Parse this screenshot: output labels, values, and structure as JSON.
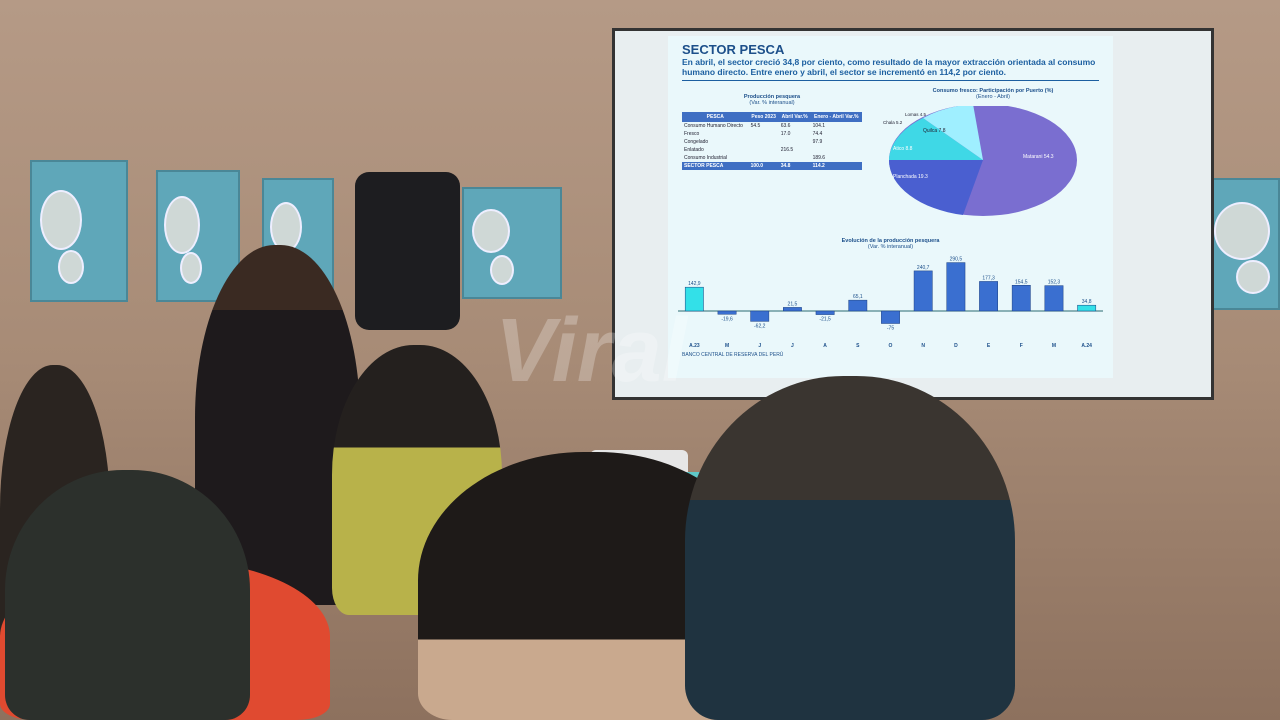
{
  "slide": {
    "title": "SECTOR PESCA",
    "subtitle": "En abril, el sector creció 34,8 por ciento, como resultado de la mayor extracción orientada al consumo humano directo. Entre enero y abril, el sector se incrementó en 114,2 por ciento.",
    "table": {
      "title": "Producción pesquera",
      "subtitle": "(Var. % interanual)",
      "headers": [
        "PESCA",
        "Peso 2023",
        "Abril Var.%",
        "Enero - Abril Var.%"
      ],
      "rows": [
        [
          "Consumo Humano Directo",
          "54.5",
          "63.6",
          "104.1"
        ],
        [
          "Fresco",
          "",
          "17.0",
          "74.4"
        ],
        [
          "Congelado",
          "",
          "",
          "97.9"
        ],
        [
          "Enlatado",
          "",
          "216.5",
          ""
        ],
        [
          "Consumo Industrial",
          "",
          "",
          "189.6"
        ]
      ],
      "total": [
        "SECTOR PESCA",
        "100.0",
        "34.8",
        "114.2"
      ]
    },
    "pie_title": "Consumo fresco: Participación por Puerto (%)",
    "pie_subtitle": "(Enero - Abril)",
    "pie_labels": [
      "Lomas 4.5",
      "Chala 5.2",
      "Quilca 7.8",
      "Atico 8.8",
      "Planchada 19.3",
      "Matarani 54.3"
    ],
    "bar_title": "Evolución de la producción pesquera",
    "bar_subtitle": "(Var. % interanual)",
    "footer": "BANCO CENTRAL DE RESERVA DEL PERÚ"
  },
  "chart_data": {
    "type": "bar",
    "title": "Evolución de la producción pesquera",
    "categories": [
      "A.23",
      "M",
      "J",
      "J",
      "A",
      "S",
      "O",
      "N",
      "D",
      "E",
      "F",
      "M",
      "A.24"
    ],
    "values": [
      142.9,
      -19.6,
      -62.2,
      21.5,
      -21.5,
      65.1,
      -75.0,
      240.7,
      290.5,
      177.3,
      154.5,
      152.3,
      34.8
    ],
    "highlight_color": "#33e0e8",
    "bar_color": "#3a6fd0"
  },
  "watermark": "Viral"
}
